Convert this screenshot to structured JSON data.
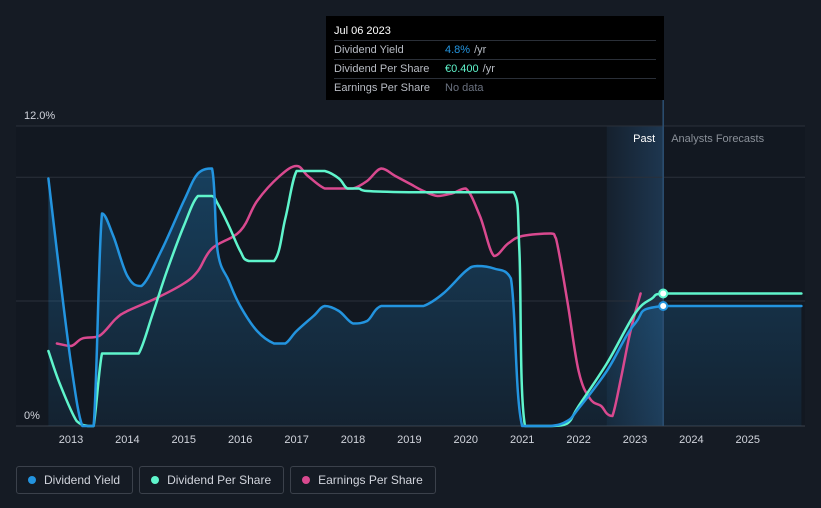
{
  "tooltip": {
    "date": "Jul 06 2023",
    "rows": [
      {
        "label": "Dividend Yield",
        "value": "4.8%",
        "unit": "/yr"
      },
      {
        "label": "Dividend Per Share",
        "value": "€0.400",
        "unit": "/yr"
      },
      {
        "label": "Earnings Per Share",
        "value": "No data",
        "unit": ""
      }
    ]
  },
  "regions": {
    "past": "Past",
    "forecast": "Analysts Forecasts"
  },
  "legend": [
    {
      "label": "Dividend Yield",
      "color": "#2394df"
    },
    {
      "label": "Dividend Per Share",
      "color": "#5ff5cc"
    },
    {
      "label": "Earnings Per Share",
      "color": "#d9498f"
    }
  ],
  "chart_data": {
    "type": "line",
    "x_range": [
      2012.6,
      2025.95
    ],
    "y_range": [
      0,
      12
    ],
    "y_tick_labels": [
      {
        "value": 12,
        "label": "12.0%"
      },
      {
        "value": 0,
        "label": "0%"
      }
    ],
    "x_tick_labels": [
      "2013",
      "2014",
      "2015",
      "2016",
      "2017",
      "2018",
      "2019",
      "2020",
      "2021",
      "2022",
      "2023",
      "2024",
      "2025"
    ],
    "past_end": 2023.5,
    "highlight_start": 2022.5,
    "series": [
      {
        "name": "Dividend Yield",
        "color": "#2394df",
        "area": true,
        "points": [
          [
            2012.6,
            9.9
          ],
          [
            2012.75,
            7.0
          ],
          [
            2013.0,
            2.5
          ],
          [
            2013.2,
            0.0
          ],
          [
            2013.4,
            0.0
          ],
          [
            2013.55,
            8.5
          ],
          [
            2013.75,
            7.6
          ],
          [
            2014.0,
            6.0
          ],
          [
            2014.25,
            5.6
          ],
          [
            2014.6,
            7.0
          ],
          [
            2015.0,
            9.0
          ],
          [
            2015.25,
            10.1
          ],
          [
            2015.5,
            10.3
          ],
          [
            2015.6,
            7.0
          ],
          [
            2015.8,
            5.8
          ],
          [
            2016.0,
            4.8
          ],
          [
            2016.3,
            3.8
          ],
          [
            2016.6,
            3.3
          ],
          [
            2016.8,
            3.3
          ],
          [
            2017.0,
            3.8
          ],
          [
            2017.3,
            4.4
          ],
          [
            2017.5,
            4.8
          ],
          [
            2017.75,
            4.6
          ],
          [
            2018.0,
            4.1
          ],
          [
            2018.25,
            4.2
          ],
          [
            2018.5,
            4.8
          ],
          [
            2019.0,
            4.8
          ],
          [
            2019.25,
            4.8
          ],
          [
            2019.6,
            5.3
          ],
          [
            2020.0,
            6.2
          ],
          [
            2020.2,
            6.4
          ],
          [
            2020.5,
            6.3
          ],
          [
            2020.8,
            5.9
          ],
          [
            2021.0,
            0.0
          ],
          [
            2021.5,
            0.0
          ],
          [
            2021.8,
            0.2
          ],
          [
            2022.0,
            0.7
          ],
          [
            2022.5,
            2.2
          ],
          [
            2023.0,
            4.1
          ],
          [
            2023.5,
            4.8
          ],
          [
            2025.95,
            4.8
          ]
        ]
      },
      {
        "name": "Dividend Per Share",
        "color": "#5ff5cc",
        "area": false,
        "points": [
          [
            2012.6,
            3.0
          ],
          [
            2012.8,
            1.7
          ],
          [
            2013.1,
            0.2
          ],
          [
            2013.3,
            0.0
          ],
          [
            2013.4,
            0.0
          ],
          [
            2013.55,
            2.9
          ],
          [
            2013.7,
            2.9
          ],
          [
            2014.0,
            2.9
          ],
          [
            2014.2,
            2.9
          ],
          [
            2014.45,
            4.5
          ],
          [
            2014.7,
            6.2
          ],
          [
            2015.0,
            8.0
          ],
          [
            2015.25,
            9.2
          ],
          [
            2015.5,
            9.2
          ],
          [
            2015.6,
            8.9
          ],
          [
            2015.8,
            8.0
          ],
          [
            2016.0,
            7.0
          ],
          [
            2016.15,
            6.6
          ],
          [
            2016.6,
            6.6
          ],
          [
            2016.8,
            8.3
          ],
          [
            2017.0,
            10.2
          ],
          [
            2017.25,
            10.2
          ],
          [
            2017.5,
            10.2
          ],
          [
            2017.75,
            9.9
          ],
          [
            2017.9,
            9.5
          ],
          [
            2018.1,
            9.5
          ],
          [
            2018.25,
            9.4
          ],
          [
            2019.0,
            9.35
          ],
          [
            2020.0,
            9.35
          ],
          [
            2020.85,
            9.35
          ],
          [
            2020.95,
            7.0
          ],
          [
            2021.05,
            0.0
          ],
          [
            2021.5,
            0.0
          ],
          [
            2021.8,
            0.1
          ],
          [
            2022.0,
            0.8
          ],
          [
            2022.5,
            2.5
          ],
          [
            2023.0,
            4.5
          ],
          [
            2023.3,
            5.1
          ],
          [
            2023.5,
            5.3
          ],
          [
            2025.95,
            5.3
          ]
        ]
      },
      {
        "name": "Earnings Per Share",
        "color": "#d9498f",
        "area": false,
        "points": [
          [
            2012.75,
            3.3
          ],
          [
            2013.0,
            3.2
          ],
          [
            2013.2,
            3.5
          ],
          [
            2013.5,
            3.6
          ],
          [
            2013.8,
            4.3
          ],
          [
            2014.0,
            4.6
          ],
          [
            2014.5,
            5.1
          ],
          [
            2015.0,
            5.7
          ],
          [
            2015.25,
            6.2
          ],
          [
            2015.5,
            7.1
          ],
          [
            2016.0,
            7.8
          ],
          [
            2016.3,
            9.0
          ],
          [
            2016.7,
            10.0
          ],
          [
            2017.0,
            10.4
          ],
          [
            2017.2,
            10.0
          ],
          [
            2017.5,
            9.5
          ],
          [
            2017.75,
            9.5
          ],
          [
            2018.0,
            9.5
          ],
          [
            2018.25,
            9.8
          ],
          [
            2018.5,
            10.3
          ],
          [
            2018.75,
            10.0
          ],
          [
            2019.0,
            9.7
          ],
          [
            2019.25,
            9.4
          ],
          [
            2019.5,
            9.2
          ],
          [
            2019.75,
            9.3
          ],
          [
            2020.0,
            9.5
          ],
          [
            2020.25,
            8.4
          ],
          [
            2020.5,
            6.8
          ],
          [
            2020.75,
            7.3
          ],
          [
            2021.0,
            7.6
          ],
          [
            2021.5,
            7.7
          ],
          [
            2021.6,
            7.5
          ],
          [
            2021.8,
            5.0
          ],
          [
            2022.0,
            2.2
          ],
          [
            2022.2,
            1.1
          ],
          [
            2022.4,
            0.8
          ],
          [
            2022.5,
            0.5
          ],
          [
            2022.6,
            0.4
          ],
          [
            2022.75,
            1.9
          ],
          [
            2022.9,
            3.6
          ],
          [
            2023.0,
            4.5
          ],
          [
            2023.1,
            5.3
          ]
        ]
      }
    ]
  }
}
